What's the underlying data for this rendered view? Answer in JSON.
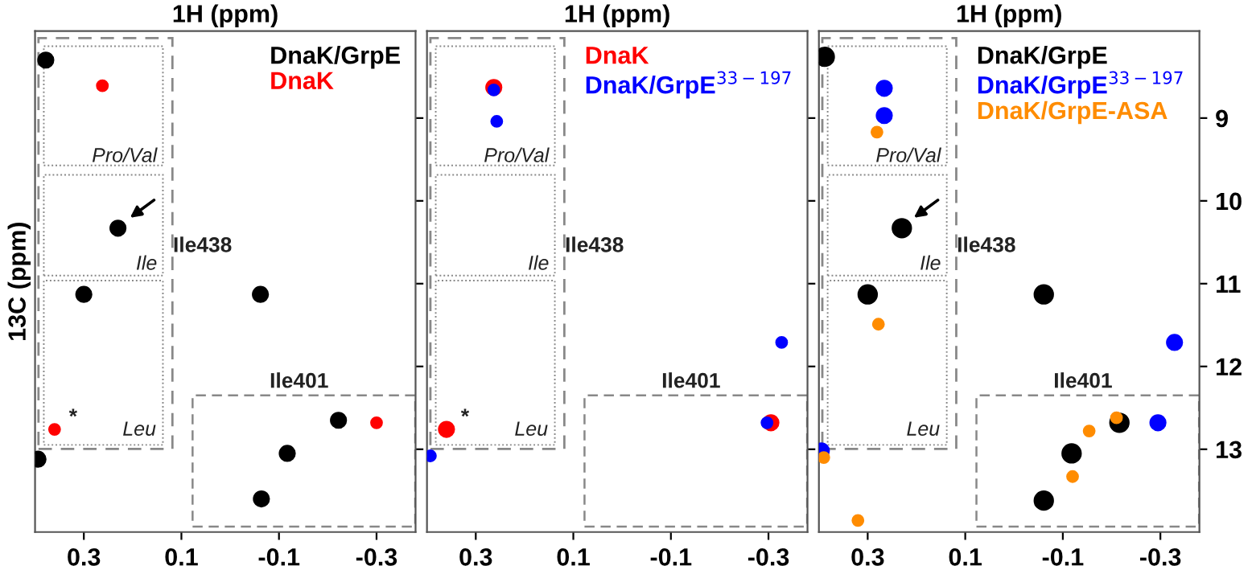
{
  "chart_data": [
    {
      "type": "scatter",
      "xlabel": "1H (ppm)",
      "ylabel": "13C (ppm)",
      "xlim": [
        0.4,
        -0.38
      ],
      "ylim": [
        14.0,
        7.95
      ],
      "xticks": [
        0.3,
        0.1,
        -0.1,
        -0.3
      ],
      "yticks": [
        9,
        10,
        11,
        12,
        13
      ],
      "tick_labels": "x",
      "grid": false,
      "legend": "top right",
      "marker": "circle",
      "annotations": [
        "Pro/Val",
        "Ile",
        "Leu",
        "Ile438",
        "Ile401",
        "*"
      ],
      "series": [
        {
          "name": "DnaK/GrpE",
          "color": "#000000",
          "x": [
            0.378,
            0.23,
            0.3,
            0.394,
            -0.062,
            -0.222,
            -0.117,
            -0.064
          ],
          "values": [
            8.3,
            10.33,
            11.13,
            13.12,
            11.13,
            12.65,
            13.05,
            13.6
          ]
        },
        {
          "name": "DnaK",
          "color": "#ff0000",
          "x": [
            0.262,
            0.36,
            -0.3
          ],
          "values": [
            8.61,
            12.76,
            12.68
          ]
        }
      ]
    },
    {
      "type": "scatter",
      "xlabel": "1H (ppm)",
      "xlim": [
        0.4,
        -0.38
      ],
      "ylim": [
        14.0,
        7.95
      ],
      "xticks": [
        0.3,
        0.1,
        -0.1,
        -0.3
      ],
      "yticks": [
        9,
        10,
        11,
        12,
        13
      ],
      "tick_labels": "x",
      "grid": false,
      "legend": "top right",
      "marker": "circle",
      "annotations": [
        "Pro/Val",
        "Ile",
        "Leu",
        "Ile438",
        "Ile401",
        "*"
      ],
      "series": [
        {
          "name": "DnaK",
          "color": "#ff0000",
          "x": [
            0.263,
            0.36,
            -0.305
          ],
          "values": [
            8.63,
            12.76,
            12.68
          ]
        },
        {
          "name": "DnaK/GrpE$^{33−197}$",
          "color": "#0000ff",
          "x": [
            0.263,
            0.257,
            0.393,
            -0.327,
            -0.297
          ],
          "values": [
            8.66,
            9.04,
            13.08,
            11.71,
            12.68
          ]
        }
      ]
    },
    {
      "type": "scatter",
      "xlabel": "1H (ppm)",
      "xlim": [
        0.4,
        -0.38
      ],
      "ylim": [
        14.0,
        7.95
      ],
      "xticks": [
        0.3,
        0.1,
        -0.1,
        -0.3
      ],
      "yticks": [
        9,
        10,
        11,
        12,
        13
      ],
      "grid": false,
      "legend": "top right",
      "marker": "circle",
      "annotations": [
        "Pro/Val",
        "Ile",
        "Leu",
        "Ile438",
        "Ile401"
      ],
      "series": [
        {
          "name": "DnaK/GrpE",
          "color": "#000000",
          "x": [
            0.388,
            0.23,
            0.3,
            -0.061,
            -0.216,
            -0.118,
            -0.061
          ],
          "values": [
            8.26,
            10.33,
            11.13,
            11.13,
            12.68,
            13.05,
            13.62
          ]
        },
        {
          "name": "DnaK/GrpE$^{33−197}$",
          "color": "#0000ff",
          "x": [
            0.266,
            0.266,
            0.395,
            -0.329,
            -0.295
          ],
          "values": [
            8.64,
            8.97,
            13.02,
            11.71,
            12.68
          ]
        },
        {
          "name": "DnaK/GrpE-ASA",
          "color": "#ff8c00",
          "x": [
            0.281,
            0.278,
            0.39,
            0.32,
            -0.21,
            -0.154,
            -0.12
          ],
          "values": [
            9.17,
            11.49,
            13.1,
            13.86,
            12.62,
            12.78,
            13.33
          ]
        }
      ]
    }
  ]
}
